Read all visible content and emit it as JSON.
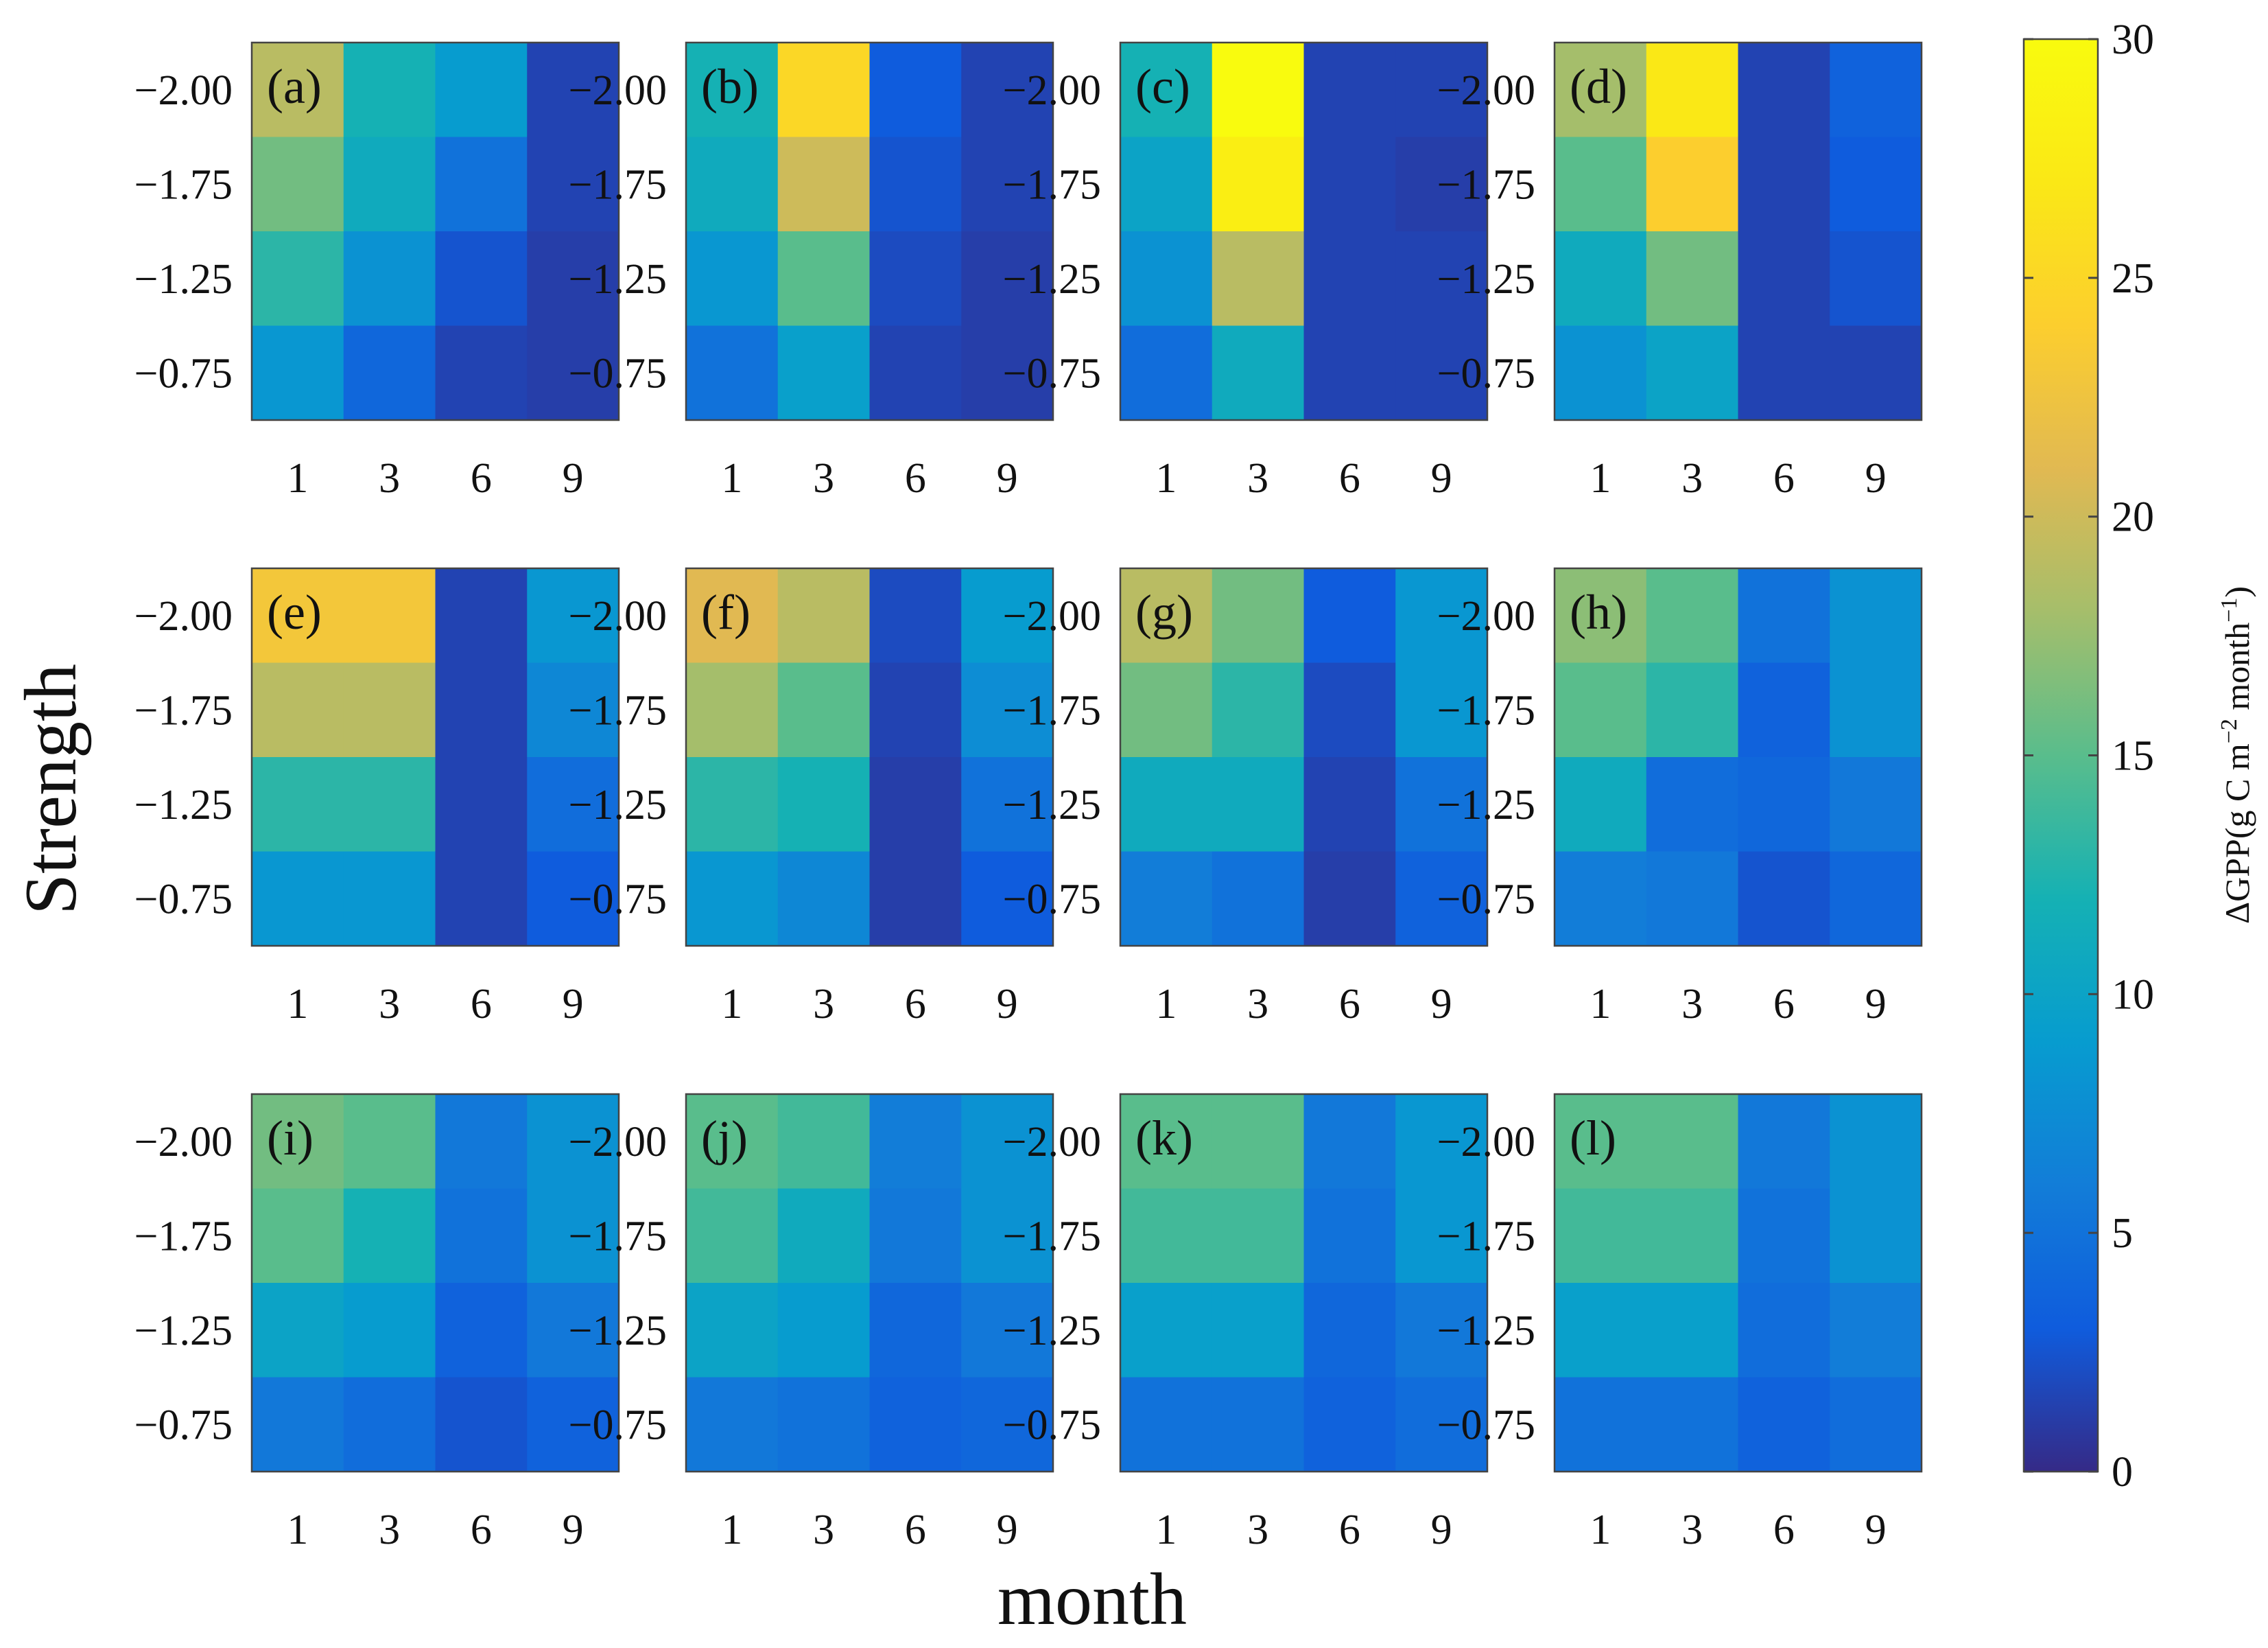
{
  "chart_data": {
    "type": "heatmap",
    "layout": "3 rows x 4 columns of small-multiple heatmaps sharing one colorbar",
    "xlabel": "month",
    "ylabel": "Strength",
    "x_ticks": [
      "1",
      "3",
      "6",
      "9"
    ],
    "y_ticks": [
      "-2.00",
      "-1.75",
      "-1.25",
      "-0.75"
    ],
    "y_tick_text": [
      "−2.00",
      "−1.75",
      "−1.25",
      "−0.75"
    ],
    "colorbar": {
      "label": "ΔGPP(g C m",
      "label_exp1": "−2",
      "label_mid": " month",
      "label_exp2": "−1",
      "label_end": ")",
      "range": [
        0,
        30
      ],
      "ticks": [
        "0",
        "5",
        "10",
        "15",
        "20",
        "25",
        "30"
      ],
      "colormap": "parula"
    },
    "panels": [
      {
        "label": "(a)",
        "values": [
          [
            19,
            12,
            9,
            1.5
          ],
          [
            16,
            11,
            5,
            1.5
          ],
          [
            13,
            8,
            2.5,
            1.2
          ],
          [
            8.5,
            4,
            1.5,
            1.2
          ]
        ]
      },
      {
        "label": "(b)",
        "values": [
          [
            12,
            25,
            3,
            1.5
          ],
          [
            11,
            20,
            2.5,
            1.5
          ],
          [
            8.5,
            15,
            2,
            1.2
          ],
          [
            5,
            9.5,
            1.5,
            1.2
          ]
        ]
      },
      {
        "label": "(c)",
        "values": [
          [
            12,
            30,
            1.5,
            1.5
          ],
          [
            10,
            28,
            1.5,
            1.2
          ],
          [
            8,
            19,
            1.5,
            1.5
          ],
          [
            4.5,
            11,
            1.5,
            1.5
          ]
        ]
      },
      {
        "label": "(d)",
        "values": [
          [
            18,
            27,
            1.5,
            3.5
          ],
          [
            15,
            24,
            1.5,
            3
          ],
          [
            11,
            16,
            1.5,
            2.5
          ],
          [
            8,
            10,
            1.5,
            1.5
          ]
        ]
      },
      {
        "label": "(e)",
        "values": [
          [
            23,
            23,
            1.5,
            8.5
          ],
          [
            19,
            19,
            1.5,
            7
          ],
          [
            13,
            13,
            1.5,
            4.5
          ],
          [
            8.5,
            8.5,
            1.5,
            3
          ]
        ]
      },
      {
        "label": "(f)",
        "values": [
          [
            21,
            19,
            2,
            9
          ],
          [
            18,
            15,
            1.5,
            7.5
          ],
          [
            13,
            12,
            1.2,
            5
          ],
          [
            8.5,
            7,
            1.2,
            3
          ]
        ]
      },
      {
        "label": "(g)",
        "values": [
          [
            19,
            16,
            3,
            8.5
          ],
          [
            16,
            13,
            2,
            8.5
          ],
          [
            11,
            11,
            1.5,
            5
          ],
          [
            6,
            5,
            1.2,
            3.5
          ]
        ]
      },
      {
        "label": "(h)",
        "values": [
          [
            17,
            15,
            5,
            8
          ],
          [
            15,
            13,
            3.5,
            8
          ],
          [
            11,
            4.5,
            4,
            5.5
          ],
          [
            6,
            5.5,
            2.5,
            4
          ]
        ]
      },
      {
        "label": "(i)",
        "values": [
          [
            16,
            15,
            5.5,
            8
          ],
          [
            15,
            12,
            5,
            8
          ],
          [
            10,
            9,
            3.5,
            5.5
          ],
          [
            5.5,
            4.5,
            2.5,
            3.5
          ]
        ]
      },
      {
        "label": "(j)",
        "values": [
          [
            15,
            14,
            6,
            8
          ],
          [
            14,
            11,
            5.5,
            8
          ],
          [
            10,
            9,
            4,
            5.5
          ],
          [
            5.5,
            5,
            3.5,
            4
          ]
        ]
      },
      {
        "label": "(k)",
        "values": [
          [
            15,
            15,
            5.5,
            8.5
          ],
          [
            14,
            14,
            5,
            8.5
          ],
          [
            9.5,
            9.5,
            4,
            5.5
          ],
          [
            5,
            5,
            3.5,
            4.5
          ]
        ]
      },
      {
        "label": "(l)",
        "values": [
          [
            15,
            15,
            5.5,
            8
          ],
          [
            14,
            14,
            5,
            8
          ],
          [
            9.5,
            9.5,
            4.5,
            6
          ],
          [
            5,
            5,
            3.5,
            4.5
          ]
        ]
      }
    ]
  }
}
